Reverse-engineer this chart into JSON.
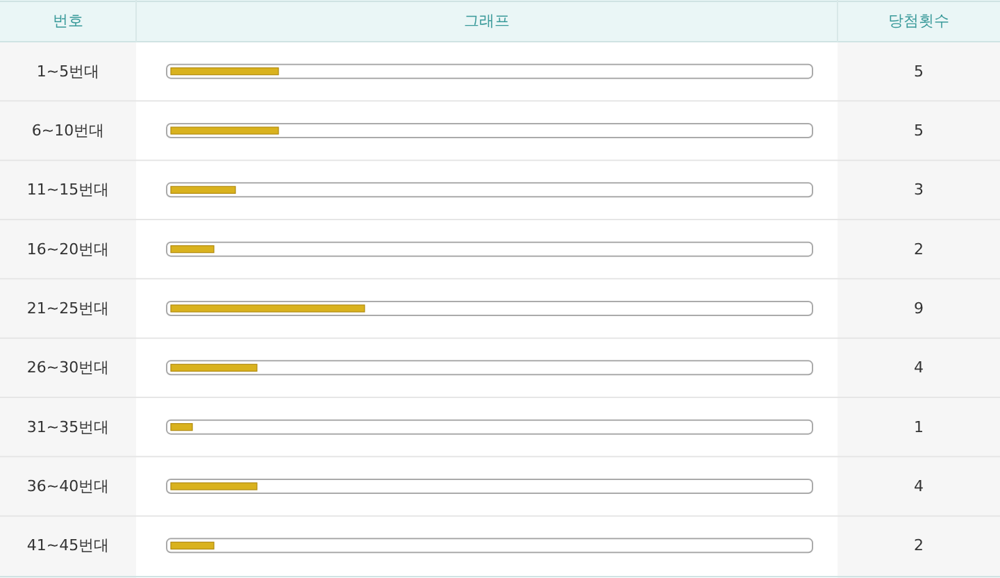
{
  "chart_data": {
    "type": "bar",
    "orientation": "horizontal",
    "ylabel": "번호",
    "xlabel": "그래프",
    "annotations": [
      "당첨횟수"
    ],
    "categories": [
      "1~5번대",
      "6~10번대",
      "11~15번대",
      "16~20번대",
      "21~25번대",
      "26~30번대",
      "31~35번대",
      "36~40번대",
      "41~45번대"
    ],
    "values": [
      5,
      5,
      3,
      2,
      9,
      4,
      1,
      4,
      2
    ],
    "color": "#d9b21e",
    "xlim": [
      0,
      30
    ],
    "data_labels": true,
    "tick_labels": "y"
  }
}
